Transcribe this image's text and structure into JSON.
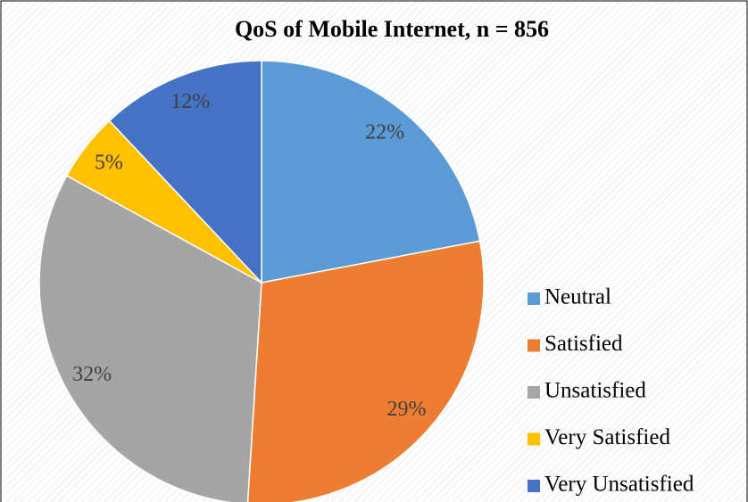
{
  "chart_data": {
    "type": "pie",
    "title": "QoS of Mobile Internet, n = 856",
    "categories": [
      "Neutral",
      "Satisfied",
      "Unsatisfied",
      "Very Satisfied",
      "Very Unsatisfied"
    ],
    "values": [
      22,
      29,
      32,
      5,
      12
    ],
    "value_labels": [
      "22%",
      "29%",
      "32%",
      "5%",
      "12%"
    ],
    "colors": [
      "#5b9bd5",
      "#ed7d31",
      "#a5a5a5",
      "#ffc000",
      "#4472c4"
    ],
    "legend": "right"
  }
}
